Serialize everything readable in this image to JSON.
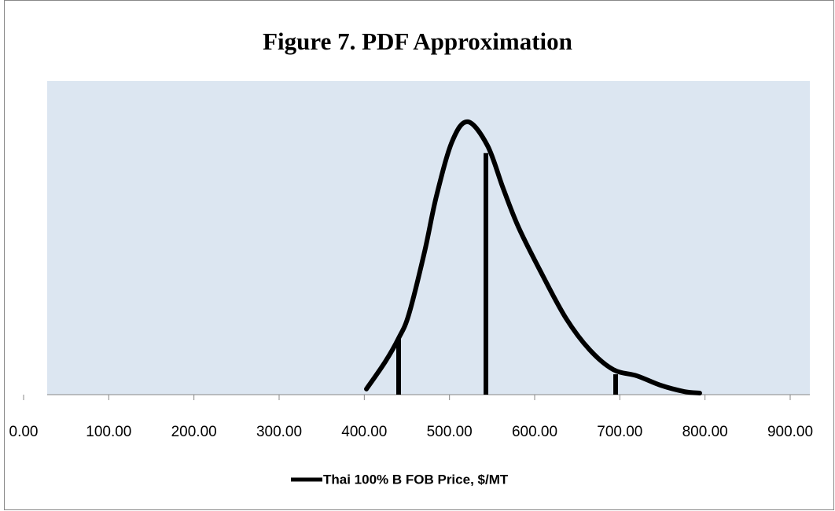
{
  "chart_data": {
    "type": "line",
    "title": "Figure 7.  PDF Approximation",
    "x": [
      402.5,
      424.6,
      440.3,
      452.3,
      470.8,
      484.6,
      503.1,
      521.5,
      544.6,
      563.1,
      581.5,
      609.2,
      636.9,
      664.6,
      692.3,
      720,
      747.7,
      775.4,
      793.8
    ],
    "series": [
      {
        "name": "Thai 100% B FOB Price, $/MT",
        "color": "#000000",
        "values": [
          0.018,
          0.105,
          0.18,
          0.256,
          0.456,
          0.632,
          0.807,
          0.87,
          0.794,
          0.657,
          0.531,
          0.381,
          0.243,
          0.143,
          0.08,
          0.06,
          0.03,
          0.01,
          0.005
        ]
      }
    ],
    "reference_lines": {
      "x": [
        440.3,
        542.8,
        695.1
      ],
      "values": [
        0.18,
        0.77,
        0.065
      ]
    },
    "xlim": [
      0,
      900
    ],
    "xticks": [
      {
        "value": 0,
        "label": "0.00"
      },
      {
        "value": 100,
        "label": "100.00"
      },
      {
        "value": 200,
        "label": "200.00"
      },
      {
        "value": 300,
        "label": "300.00"
      },
      {
        "value": 400,
        "label": "400.00"
      },
      {
        "value": 500,
        "label": "500.00"
      },
      {
        "value": 600,
        "label": "600.00"
      },
      {
        "value": 700,
        "label": "700.00"
      },
      {
        "value": 800,
        "label": "800.00"
      },
      {
        "value": 900,
        "label": "900.00"
      }
    ],
    "ylim": [
      0,
      1
    ],
    "plot_background": "#dce6f1",
    "legend": "bottom"
  }
}
